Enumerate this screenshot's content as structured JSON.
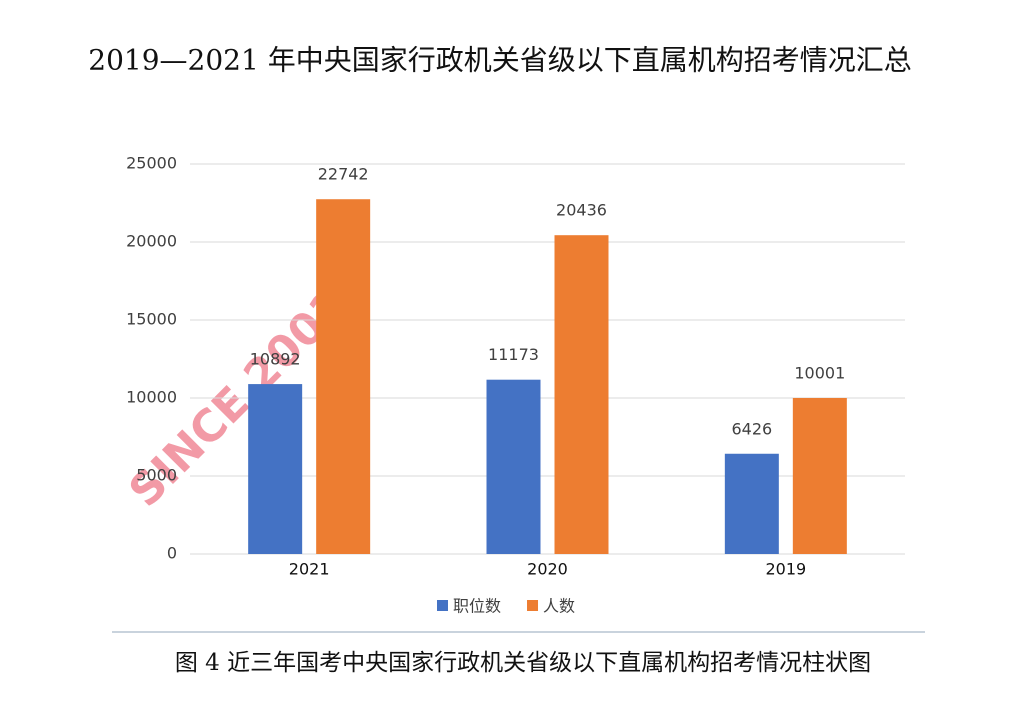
{
  "chart_data": {
    "type": "bar",
    "title": "2019—2021 年中央国家行政机关省级以下直属机构招考情况汇总",
    "caption": "图 4 近三年国考中央国家行政机关省级以下直属机构招考情况柱状图",
    "watermark": "SINCE 2001",
    "categories": [
      "2021",
      "2020",
      "2019"
    ],
    "series": [
      {
        "name": "职位数",
        "color": "#4472c4",
        "values": [
          10892,
          11173,
          6426
        ]
      },
      {
        "name": "人数",
        "color": "#ed7d31",
        "values": [
          22742,
          20436,
          10001
        ]
      }
    ],
    "ylim": [
      0,
      25000
    ],
    "yticks": [
      0,
      5000,
      10000,
      15000,
      20000,
      25000
    ],
    "grid": true
  }
}
